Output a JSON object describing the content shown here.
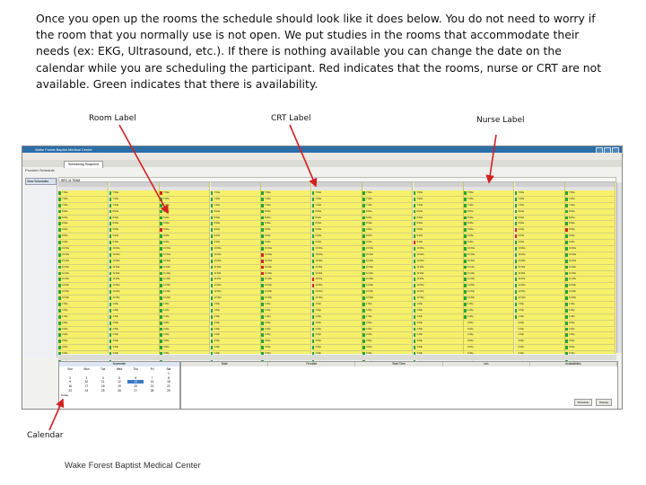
{
  "instructions": "Once you open up the rooms the schedule should look like it does below.  You do not need to worry if the room that you normally use is not open.  We put studies in the rooms that accommodate their needs (ex: EKG, Ultrasound, etc.). If there is nothing available you can change the date on the calendar while you are scheduling the participant.  Red indicates that the rooms, nurse or CRT are not available.  Green indicates that there is availability.",
  "labels": {
    "room": "Room Label",
    "crt": "CRT Label",
    "nurse": "Nurse Label",
    "calendar": "Calendar"
  },
  "footer": "Wake Forest Baptist Medical Center",
  "colors": {
    "available": "#25a53b",
    "unavailable": "#d42424",
    "slot_background": "#f6f06a",
    "arrow": "#d42020"
  },
  "screenshot": {
    "titlebar": "Wake Forest Baptist Medical Center",
    "tab": "Scheduling Snapshot",
    "page_title": "Provider Schedule",
    "left_nav_button": "View Schedules",
    "filter_text": "WFC 11 TEAM",
    "calendar_header": "November",
    "calendar_days": [
      "Sun",
      "Mon",
      "Tue",
      "Wed",
      "Thu",
      "Fri",
      "Sat"
    ],
    "calendar_dates": [
      "",
      "",
      "",
      "",
      "",
      "",
      "1",
      "2",
      "3",
      "4",
      "5",
      "6",
      "7",
      "8",
      "9",
      "10",
      "11",
      "12",
      "13",
      "14",
      "15",
      "16",
      "17",
      "18",
      "19",
      "20",
      "21",
      "22",
      "23",
      "24",
      "25",
      "26",
      "27",
      "28",
      "29"
    ],
    "calendar_selected_index": 18,
    "calendar_today": "Today",
    "appointment_headers": [
      "Date",
      "Provider",
      "Start Time",
      "Len",
      "Availabilities"
    ],
    "buttons": [
      "Schedule",
      "Display"
    ],
    "slot_times": [
      "7:00a",
      "7:20a",
      "7:40a",
      "8:00a",
      "8:20a",
      "8:40a",
      "9:00a",
      "9:20a",
      "9:40a",
      "10:00a",
      "10:20a",
      "10:40a",
      "11:00a",
      "11:20a",
      "11:40a",
      "12:00p",
      "12:20p",
      "12:40p",
      "1:00p",
      "1:20p",
      "1:40p",
      "2:00p",
      "2:20p",
      "2:40p",
      "3:00p",
      "3:20p",
      "3:40p",
      "4:00p",
      "4:20p",
      "4:40p"
    ]
  }
}
